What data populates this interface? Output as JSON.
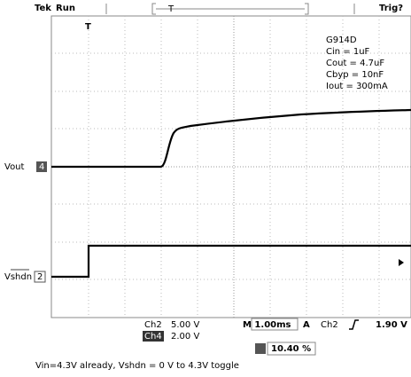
{
  "header": {
    "brand": "Tek",
    "status": "Run",
    "trigger_state": "Trig?",
    "trigger_marker": "T"
  },
  "notes": [
    "G914D",
    "Cin = 1uF",
    "Cout = 4.7uF",
    "Cbyp = 10nF",
    "Iout = 300mA"
  ],
  "channels": [
    {
      "label": "Vout",
      "number": "4"
    },
    {
      "label": "Vshdn",
      "number": "2"
    }
  ],
  "readout": {
    "ch2": "Ch2",
    "ch2_scale": "5.00 V",
    "ch4": "Ch4",
    "ch4_scale": "2.00 V",
    "timebase": "M 1.00ms",
    "trigger_mode": "A",
    "trigger_source": "Ch2",
    "trigger_level": "1.90 V",
    "trigger_position": "10.40 %"
  },
  "caption": "Vin=4.3V already, Vshdn = 0 V to 4.3V toggle"
}
